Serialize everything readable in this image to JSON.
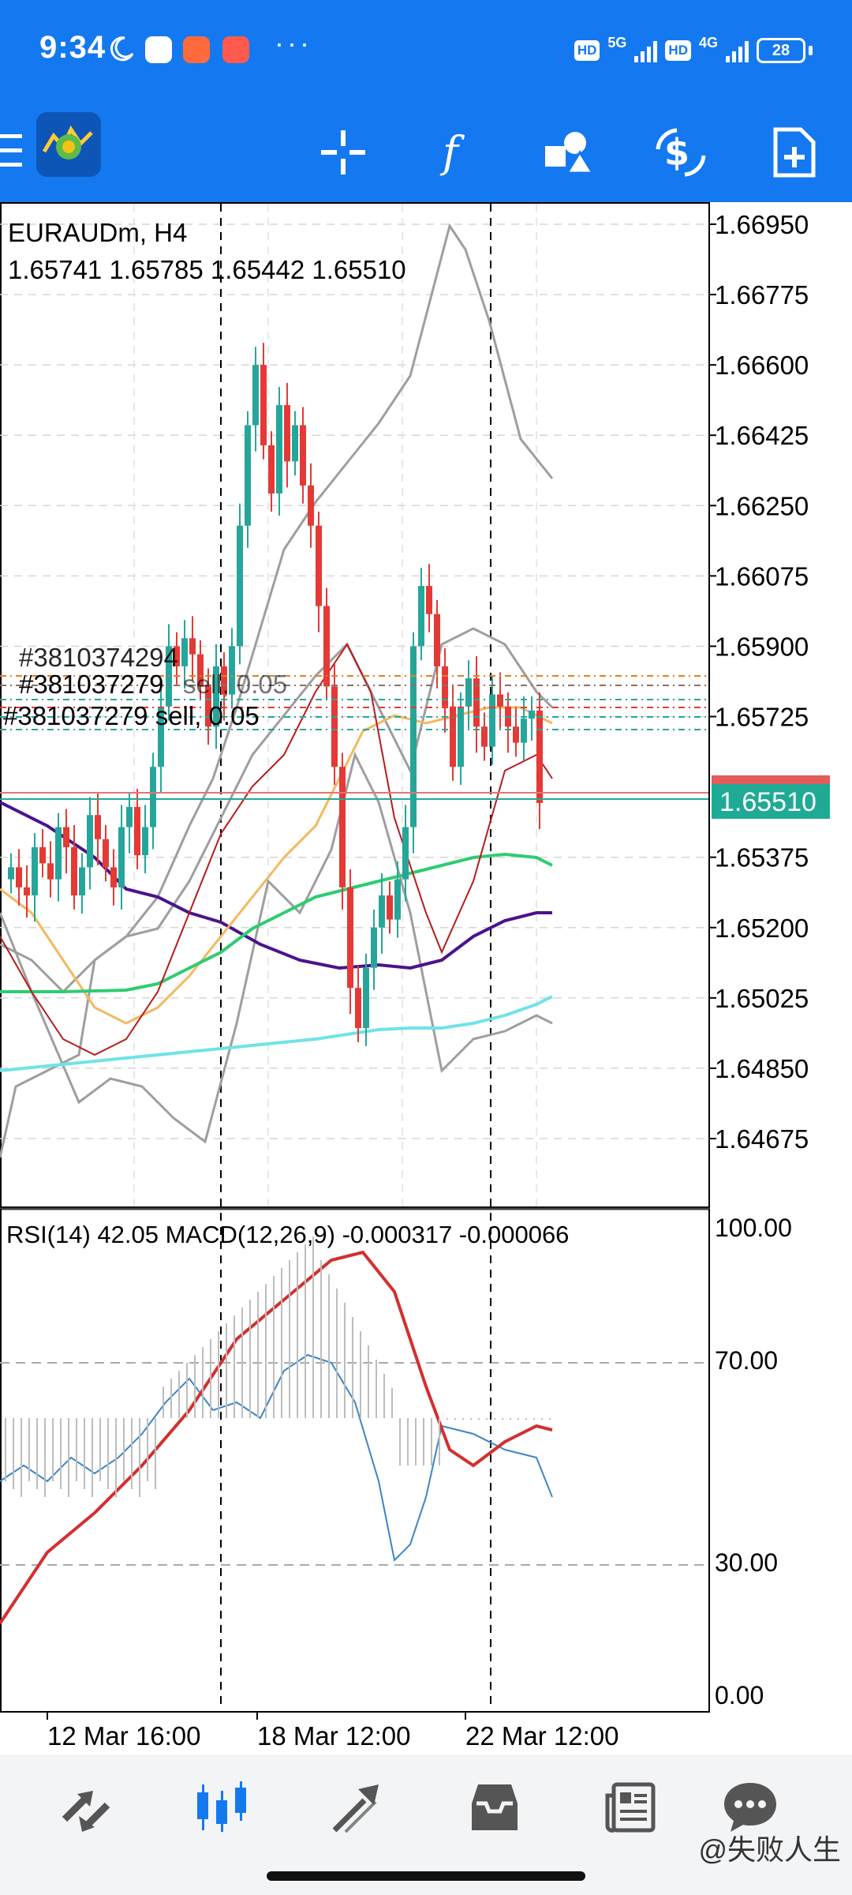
{
  "status_bar": {
    "time": "9:34",
    "more": "···",
    "hd1": "HD",
    "net1": "5G",
    "hd2": "HD",
    "net2": "4G",
    "battery": "28"
  },
  "toolbar": {
    "icons": [
      "menu-icon",
      "app-logo",
      "crosshair-icon",
      "indicators-icon",
      "objects-icon",
      "trade-icon",
      "new-order-icon"
    ]
  },
  "chart": {
    "symbol": "EURAUDm, H4",
    "ohlc": "1.65741 1.65785 1.65442 1.65510",
    "order_label_1": "#381037279",
    "order_label_1_suffix": "sell, 0.05",
    "order_label_2": "#381037279 sell, 0.05",
    "order_label_3": "#3810374294",
    "current_price": "1.65510",
    "price_axis": [
      "1.66950",
      "1.66775",
      "1.66600",
      "1.66425",
      "1.66250",
      "1.66075",
      "1.65900",
      "1.65725",
      "1.65375",
      "1.65200",
      "1.65025",
      "1.64850",
      "1.64675"
    ],
    "time_axis": [
      "12 Mar 16:00",
      "18 Mar 12:00",
      "22 Mar 12:00"
    ],
    "colors": {
      "bull": "#26a69a",
      "bear": "#e53935",
      "bollinger": "#9e9e9e",
      "ma_purple": "#4a148c",
      "ma_orange": "#f4b860",
      "ma_green": "#2ecc71",
      "ma_cyan": "#6fe3e8",
      "ma_red": "#b71c1c",
      "price_tag": "#1faa96"
    }
  },
  "subwindow": {
    "label": "RSI(14) 42.05 MACD(12,26,9) -0.000317 -0.000066",
    "axis": [
      "100.00",
      "70.00",
      "30.00",
      "0.00"
    ]
  },
  "bottom_nav": {
    "items": [
      "quotes-icon",
      "chart-icon",
      "trade-icon",
      "history-icon",
      "news-icon",
      "messages-icon"
    ]
  },
  "watermark": "@失败人生"
}
